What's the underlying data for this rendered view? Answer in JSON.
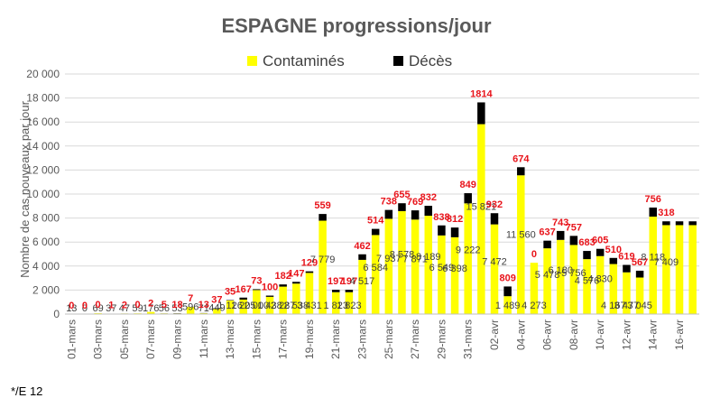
{
  "chart_data": {
    "type": "bar",
    "stacked": true,
    "title": "ESPAGNE progressions/jour",
    "ylabel": "Nombre de cas nouveaux par jour",
    "ylim": [
      0,
      20000
    ],
    "yticks": [
      "0",
      "2 000",
      "4 000",
      "6 000",
      "8 000",
      "10 000",
      "12 000",
      "14 000",
      "16 000",
      "18 000",
      "20 000"
    ],
    "grid": true,
    "legend_position": "top",
    "categories": [
      "01-mars",
      "02-mars",
      "03-mars",
      "04-mars",
      "05-mars",
      "06-mars",
      "07-mars",
      "08-mars",
      "09-mars",
      "10-mars",
      "11-mars",
      "12-mars",
      "13-mars",
      "14-mars",
      "15-mars",
      "16-mars",
      "17-mars",
      "18-mars",
      "19-mars",
      "20-mars",
      "21-mars",
      "22-mars",
      "23-mars",
      "24-mars",
      "25-mars",
      "26-mars",
      "27-mars",
      "28-mars",
      "29-mars",
      "30-mars",
      "31-mars",
      "01-avr",
      "02-avr",
      "03-avr",
      "04-avr",
      "05-avr",
      "06-avr",
      "07-avr",
      "08-avr",
      "09-avr",
      "10-avr",
      "11-avr",
      "12-avr",
      "13-avr",
      "14-avr",
      "15-avr",
      "16-avr",
      "17-avr"
    ],
    "x_tick_labels": [
      "01-mars",
      "03-mars",
      "05-mars",
      "07-mars",
      "09-mars",
      "11-mars",
      "13-mars",
      "15-mars",
      "17-mars",
      "19-mars",
      "21-mars",
      "23-mars",
      "25-mars",
      "27-mars",
      "29-mars",
      "31-mars",
      "02-avr",
      "04-avr",
      "06-avr",
      "08-avr",
      "10-avr",
      "12-avr",
      "14-avr",
      "16-avr"
    ],
    "series": [
      {
        "name": "Contaminés",
        "color": "#ffff00",
        "values": [
          13,
          0,
          69,
          37,
          47,
          59,
          176,
          56,
          53,
          596,
          71,
          449,
          1126,
          1205,
          2000,
          1438,
          2287,
          2538,
          3431,
          7779,
          1823,
          1823,
          4517,
          6584,
          7937,
          8578,
          7871,
          8189,
          6549,
          6398,
          9222,
          15821,
          7472,
          1489,
          11560,
          4273,
          5478,
          6180,
          5756,
          4576,
          4830,
          4167,
          3477,
          3045,
          8118,
          7409,
          7409,
          7409
        ],
        "labels": [
          "13",
          "0",
          "69",
          "37",
          "47",
          "59",
          "176",
          "56",
          "53",
          "596",
          "71",
          "449",
          "1 126",
          "1 205",
          "2 000",
          "1 438",
          "2 287",
          "2 538",
          "3 431",
          "7 779",
          "1 823",
          "1 823",
          "4 517",
          "6 584",
          "7 937",
          "8 578",
          "7 871",
          "8 189",
          "6 549",
          "6 398",
          "9 222",
          "15 821",
          "7 472",
          "1 489",
          "11 560",
          "4 273",
          "5 478",
          "6 180",
          "5 756",
          "4 576",
          "4 830",
          "4 167",
          "3 477",
          "3 045",
          "8 118",
          "7 409",
          "",
          ""
        ]
      },
      {
        "name": "Décès",
        "color": "#000000",
        "values": [
          0,
          0,
          0,
          1,
          2,
          0,
          2,
          5,
          18,
          7,
          13,
          37,
          35,
          167,
          73,
          100,
          182,
          147,
          129,
          559,
          197,
          197,
          462,
          514,
          738,
          655,
          769,
          832,
          838,
          812,
          849,
          1814,
          932,
          809,
          674,
          0,
          637,
          743,
          757,
          683,
          605,
          510,
          619,
          567,
          756,
          318,
          318,
          318
        ],
        "labels": [
          "0",
          "0",
          "0",
          "1",
          "2",
          "0",
          "2",
          "5",
          "18",
          "7",
          "13",
          "37",
          "35",
          "167",
          "73",
          "100",
          "182",
          "147",
          "129",
          "559",
          "197",
          "197",
          "462",
          "514",
          "738",
          "655",
          "769",
          "832",
          "838",
          "812",
          "849",
          "1814",
          "932",
          "809",
          "674",
          "0",
          "637",
          "743",
          "757",
          "683",
          "605",
          "510",
          "619",
          "567",
          "756",
          "318",
          "",
          ""
        ]
      }
    ]
  },
  "footnote": "*/E               12                                    "
}
